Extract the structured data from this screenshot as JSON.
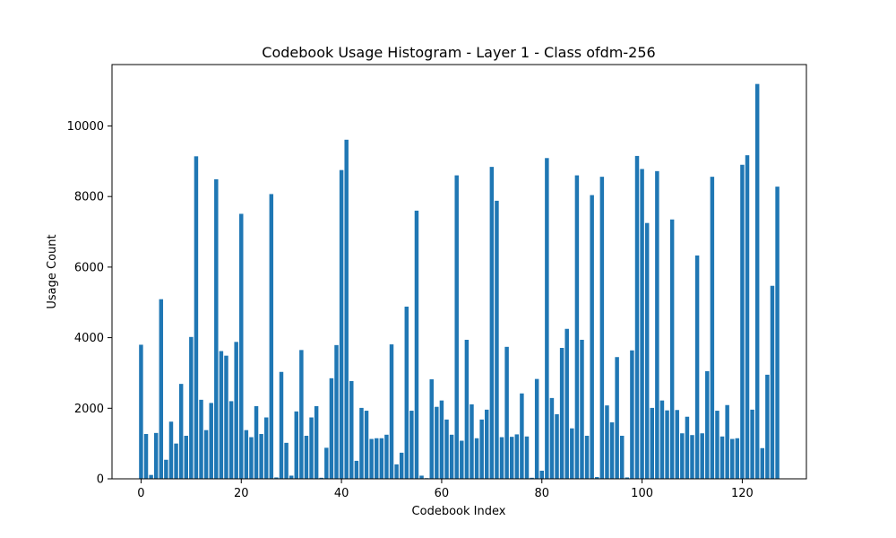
{
  "chart_data": {
    "type": "bar",
    "title": "Codebook Usage Histogram - Layer 1 - Class ofdm-256",
    "xlabel": "Codebook Index",
    "ylabel": "Usage Count",
    "bar_color": "#1f77b4",
    "xlim": [
      -5.8,
      132.8
    ],
    "ylim": [
      0,
      11740
    ],
    "xticks": [
      0,
      20,
      40,
      60,
      80,
      100,
      120
    ],
    "yticks": [
      0,
      2000,
      4000,
      6000,
      8000,
      10000
    ],
    "x": [
      0,
      1,
      2,
      3,
      4,
      5,
      6,
      7,
      8,
      9,
      10,
      11,
      12,
      13,
      14,
      15,
      16,
      17,
      18,
      19,
      20,
      21,
      22,
      23,
      24,
      25,
      26,
      27,
      28,
      29,
      30,
      31,
      32,
      33,
      34,
      35,
      36,
      37,
      38,
      39,
      40,
      41,
      42,
      43,
      44,
      45,
      46,
      47,
      48,
      49,
      50,
      51,
      52,
      53,
      54,
      55,
      56,
      57,
      58,
      59,
      60,
      61,
      62,
      63,
      64,
      65,
      66,
      67,
      68,
      69,
      70,
      71,
      72,
      73,
      74,
      75,
      76,
      77,
      78,
      79,
      80,
      81,
      82,
      83,
      84,
      85,
      86,
      87,
      88,
      89,
      90,
      91,
      92,
      93,
      94,
      95,
      96,
      97,
      98,
      99,
      100,
      101,
      102,
      103,
      104,
      105,
      106,
      107,
      108,
      109,
      110,
      111,
      112,
      113,
      114,
      115,
      116,
      117,
      118,
      119,
      120,
      121,
      122,
      123,
      124,
      125,
      126,
      127
    ],
    "values": [
      3800,
      1270,
      110,
      1300,
      5090,
      540,
      1620,
      1000,
      2690,
      1220,
      4020,
      9140,
      2240,
      1380,
      2150,
      8490,
      3620,
      3490,
      2200,
      3880,
      7510,
      1380,
      1180,
      2060,
      1270,
      1740,
      8070,
      40,
      3030,
      1020,
      90,
      1910,
      3650,
      1220,
      1740,
      2060,
      30,
      880,
      2850,
      3790,
      8750,
      9610,
      2770,
      510,
      2010,
      1930,
      1130,
      1150,
      1150,
      1250,
      3810,
      410,
      740,
      4880,
      1930,
      7600,
      90,
      20,
      2820,
      2040,
      2220,
      1680,
      1250,
      8600,
      1080,
      3940,
      2110,
      1150,
      1680,
      1960,
      8840,
      7880,
      1180,
      3740,
      1190,
      1260,
      2420,
      1200,
      30,
      2830,
      230,
      9090,
      2290,
      1830,
      3710,
      4250,
      1430,
      8600,
      3940,
      1220,
      8040,
      50,
      8560,
      2080,
      1600,
      3450,
      1220,
      40,
      3640,
      9150,
      8780,
      7250,
      2010,
      8720,
      2220,
      1940,
      7350,
      1950,
      1290,
      1760,
      1240,
      6330,
      1290,
      3050,
      8560,
      1930,
      1200,
      2090,
      1130,
      1150,
      8900,
      9170,
      1960,
      11190,
      870,
      2950,
      5470,
      8280
    ]
  }
}
